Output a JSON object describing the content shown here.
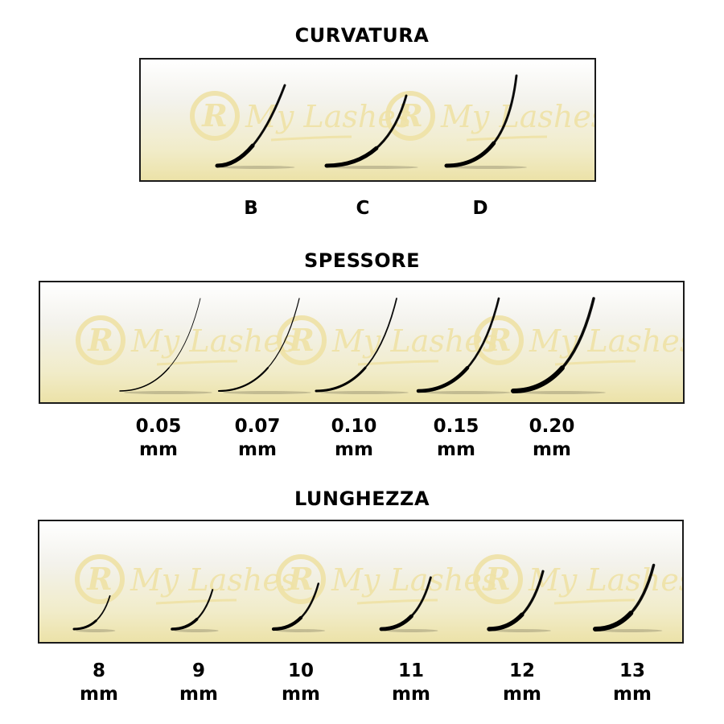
{
  "watermark_logo": {
    "text": "My Lashes",
    "monogram": "R",
    "color": "#efe2a6"
  },
  "lash_color": "#000000",
  "sections": [
    {
      "title": "CURVATURA",
      "options": [
        {
          "line1": "B"
        },
        {
          "line1": "C"
        },
        {
          "line1": "D"
        }
      ]
    },
    {
      "title": "SPESSORE",
      "options": [
        {
          "line1": "0.05",
          "line2": "mm",
          "thickness": 0.05
        },
        {
          "line1": "0.07",
          "line2": "mm",
          "thickness": 0.07
        },
        {
          "line1": "0.10",
          "line2": "mm",
          "thickness": 0.1
        },
        {
          "line1": "0.15",
          "line2": "mm",
          "thickness": 0.15
        },
        {
          "line1": "0.20",
          "line2": "mm",
          "thickness": 0.2
        }
      ]
    },
    {
      "title": "LUNGHEZZA",
      "options": [
        {
          "line1": "8",
          "line2": "mm",
          "length": 8
        },
        {
          "line1": "9",
          "line2": "mm",
          "length": 9
        },
        {
          "line1": "10",
          "line2": "mm",
          "length": 10
        },
        {
          "line1": "11",
          "line2": "mm",
          "length": 11
        },
        {
          "line1": "12",
          "line2": "mm",
          "length": 12
        },
        {
          "line1": "13",
          "line2": "mm",
          "length": 13
        }
      ]
    }
  ]
}
